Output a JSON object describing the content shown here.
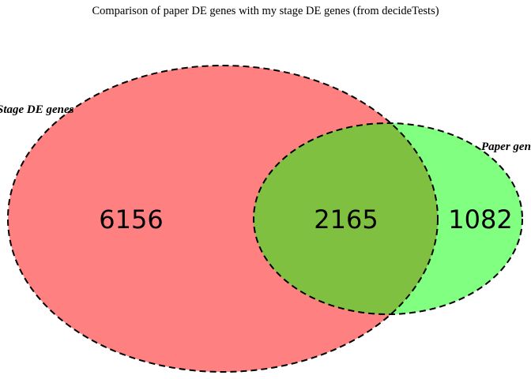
{
  "title": "Comparison of paper DE genes with my stage DE genes (from decideTests)",
  "sets": [
    {
      "label": "Stage DE genes",
      "color": "#ff8080"
    },
    {
      "label": "Paper genes",
      "color": "#80ff80"
    }
  ],
  "overlap_color": "#80c040",
  "counts": {
    "stage_only": "6156",
    "both": "2165",
    "paper_only": "1082"
  }
}
